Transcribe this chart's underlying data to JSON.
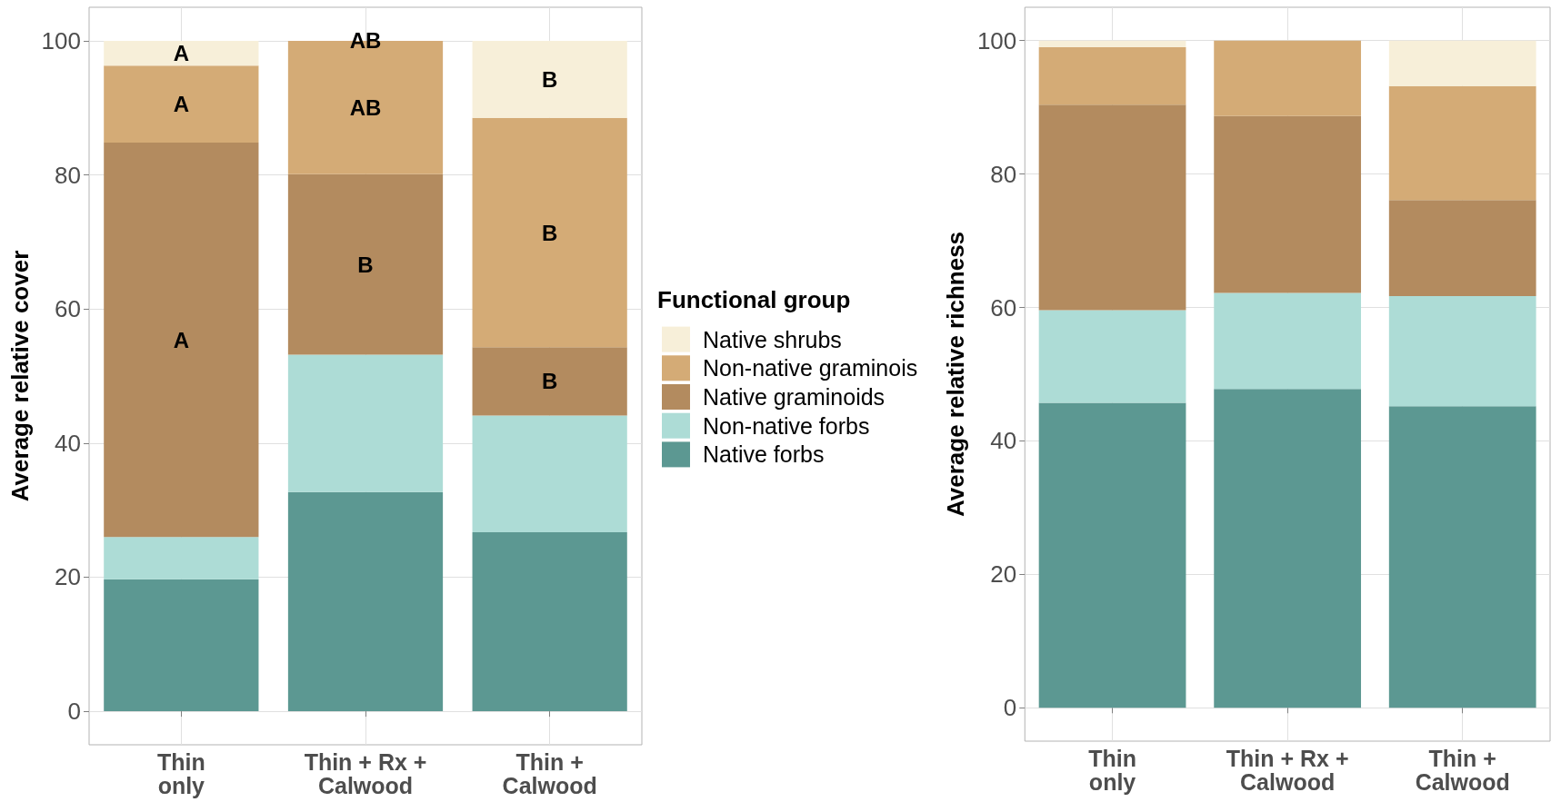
{
  "chart_data": [
    {
      "type": "bar",
      "stacked": true,
      "categories": [
        "Thin\nonly",
        "Thin + Rx +\nCalwood",
        "Thin +\nCalwood"
      ],
      "series": [
        {
          "name": "Native forbs",
          "color": "#5c9892",
          "values": [
            19.7,
            32.7,
            26.7
          ]
        },
        {
          "name": "Non-native forbs",
          "color": "#addcd6",
          "values": [
            6.3,
            20.5,
            17.4
          ]
        },
        {
          "name": "Native graminoids",
          "color": "#b38b5f",
          "values": [
            58.8,
            26.9,
            10.2
          ],
          "value_labels": [
            "A",
            "B",
            "B"
          ]
        },
        {
          "name": "Non-native graminois",
          "color": "#d4ab76",
          "values": [
            11.5,
            19.9,
            34.2
          ],
          "value_labels": [
            "A",
            "AB",
            "B"
          ]
        },
        {
          "name": "Native shrubs",
          "color": "#f7efd9",
          "values": [
            3.7,
            0,
            11.5
          ],
          "value_labels": [
            "A",
            "AB",
            "B"
          ]
        }
      ],
      "ylim": [
        -5,
        105
      ],
      "yticks": [
        0,
        20,
        40,
        60,
        80,
        100
      ],
      "ylabel": "Average relative cover",
      "grid": true,
      "legend": "right",
      "legend_title": "Functional group"
    },
    {
      "type": "bar",
      "stacked": true,
      "categories": [
        "Thin\nonly",
        "Thin + Rx +\nCalwood",
        "Thin +\nCalwood"
      ],
      "series": [
        {
          "color": "#5c9892",
          "values": [
            45.7,
            47.8,
            45.2
          ]
        },
        {
          "color": "#addcd6",
          "values": [
            13.9,
            14.4,
            16.5
          ]
        },
        {
          "color": "#b38b5f",
          "values": [
            30.8,
            26.5,
            14.4
          ]
        },
        {
          "color": "#d4ab76",
          "values": [
            8.6,
            11.3,
            17.1
          ]
        },
        {
          "color": "#f7efd9",
          "values": [
            1.0,
            0,
            6.8
          ]
        }
      ],
      "ylim": [
        -5,
        105
      ],
      "yticks": [
        0,
        20,
        40,
        60,
        80,
        100
      ],
      "ylabel": "Average relative richness",
      "grid": true
    }
  ]
}
